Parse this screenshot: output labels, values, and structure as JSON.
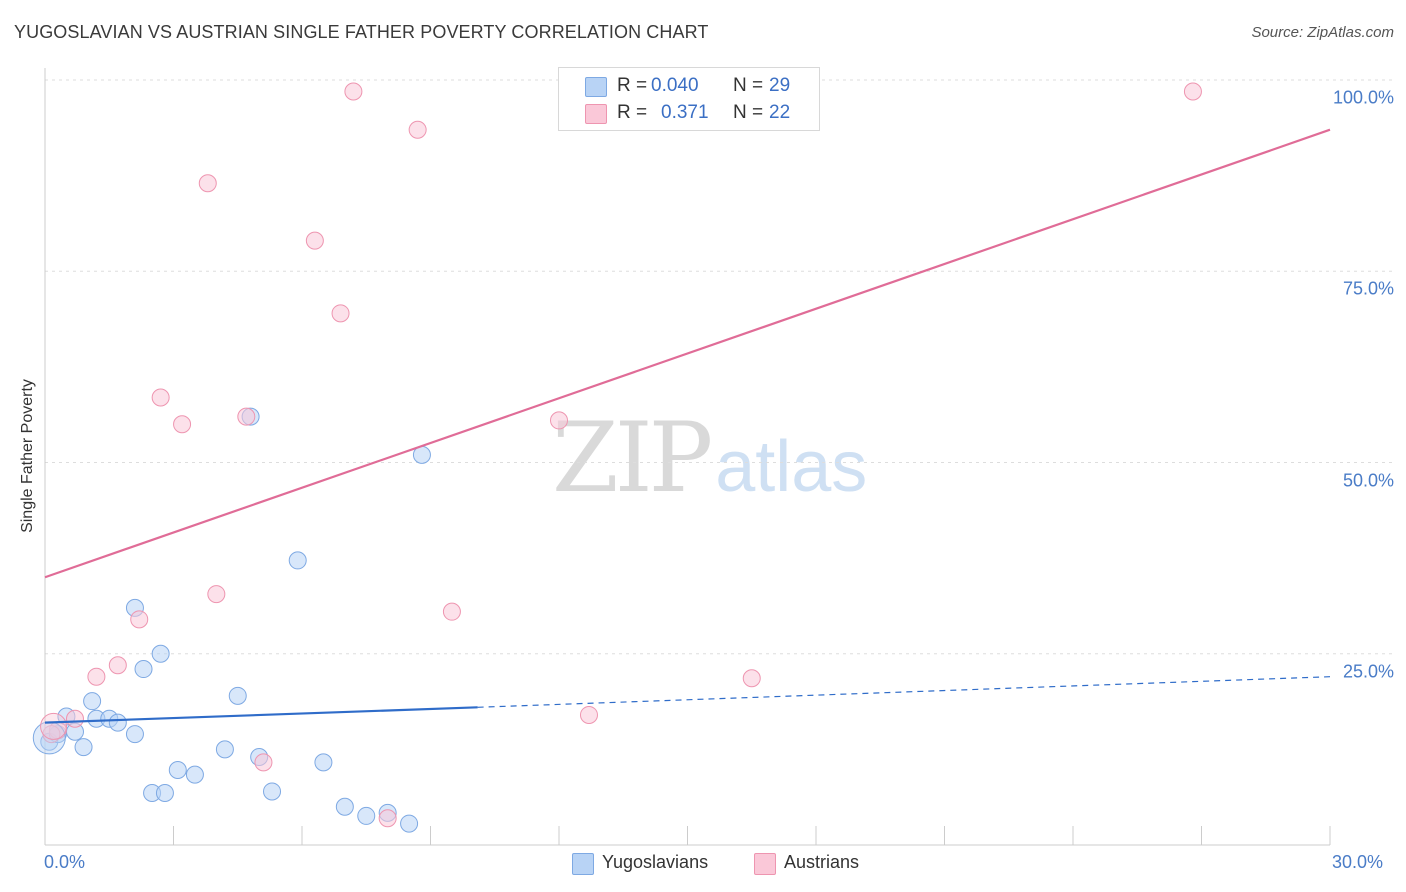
{
  "title": "YUGOSLAVIAN VS AUSTRIAN SINGLE FATHER POVERTY CORRELATION CHART",
  "source": "Source: ZipAtlas.com",
  "watermark": {
    "zip": "ZIP",
    "atlas": "atlas"
  },
  "legend": {
    "r_label": "R =",
    "n_label": "N =",
    "rows": [
      {
        "r": "0.040",
        "n": "29",
        "color": "#b8d3f5",
        "border": "#7ea9e3"
      },
      {
        "r": "0.371",
        "n": "22",
        "color": "#fac8d8",
        "border": "#ee95b0"
      }
    ]
  },
  "chart_data": {
    "type": "scatter",
    "title": "YUGOSLAVIAN VS AUSTRIAN SINGLE FATHER POVERTY CORRELATION CHART",
    "xlabel": "",
    "ylabel": "Single Father Poverty",
    "xlim": [
      0,
      30
    ],
    "ylim": [
      0,
      100
    ],
    "x_ticks": [
      "0.0%",
      "30.0%"
    ],
    "y_ticks": [
      {
        "value": 25,
        "label": "25.0%"
      },
      {
        "value": 50,
        "label": "50.0%"
      },
      {
        "value": 75,
        "label": "75.0%"
      },
      {
        "value": 100,
        "label": "100.0%"
      }
    ],
    "series": [
      {
        "name": "Yugoslavians",
        "color": "#7ea9e3",
        "fill": "#b8d3f5",
        "trend": {
          "x0": 0,
          "y0": 16.0,
          "x1": 10.1,
          "y1": 18.0,
          "dash_to_x": 30,
          "dash_to_y": 22.0,
          "color": "#2f6cc9"
        },
        "points": [
          [
            0.1,
            13.5
          ],
          [
            0.3,
            14.5
          ],
          [
            0.5,
            16.8
          ],
          [
            0.7,
            14.8
          ],
          [
            0.9,
            12.8
          ],
          [
            1.1,
            18.8
          ],
          [
            1.2,
            16.5
          ],
          [
            1.5,
            16.5
          ],
          [
            1.7,
            16.0
          ],
          [
            2.1,
            31.0
          ],
          [
            2.1,
            14.5
          ],
          [
            2.3,
            23.0
          ],
          [
            2.5,
            6.8
          ],
          [
            2.7,
            25.0
          ],
          [
            2.8,
            6.8
          ],
          [
            3.1,
            9.8
          ],
          [
            3.5,
            9.2
          ],
          [
            4.2,
            12.5
          ],
          [
            4.5,
            19.5
          ],
          [
            4.8,
            56.0
          ],
          [
            5.0,
            11.5
          ],
          [
            5.3,
            7.0
          ],
          [
            5.9,
            37.2
          ],
          [
            6.5,
            10.8
          ],
          [
            7.0,
            5.0
          ],
          [
            7.5,
            3.8
          ],
          [
            8.0,
            4.2
          ],
          [
            8.5,
            2.8
          ],
          [
            8.8,
            51.0
          ]
        ]
      },
      {
        "name": "Austrians",
        "color": "#ee95b0",
        "fill": "#fac8d8",
        "trend": {
          "x0": 0,
          "y0": 35.0,
          "x1": 30,
          "y1": 93.5,
          "color": "#e06c97"
        },
        "points": [
          [
            0.3,
            15.0
          ],
          [
            0.7,
            16.5
          ],
          [
            1.2,
            22.0
          ],
          [
            1.7,
            23.5
          ],
          [
            2.2,
            29.5
          ],
          [
            2.7,
            58.5
          ],
          [
            3.2,
            55.0
          ],
          [
            3.8,
            86.5
          ],
          [
            4.0,
            32.8
          ],
          [
            4.7,
            56.0
          ],
          [
            5.1,
            10.8
          ],
          [
            6.3,
            79.0
          ],
          [
            6.9,
            69.5
          ],
          [
            7.2,
            98.5
          ],
          [
            8.0,
            3.5
          ],
          [
            8.7,
            93.5
          ],
          [
            9.5,
            30.5
          ],
          [
            12.0,
            55.5
          ],
          [
            12.7,
            17.0
          ],
          [
            16.5,
            21.8
          ],
          [
            26.8,
            98.5
          ],
          [
            0.15,
            14.5
          ]
        ]
      }
    ]
  }
}
